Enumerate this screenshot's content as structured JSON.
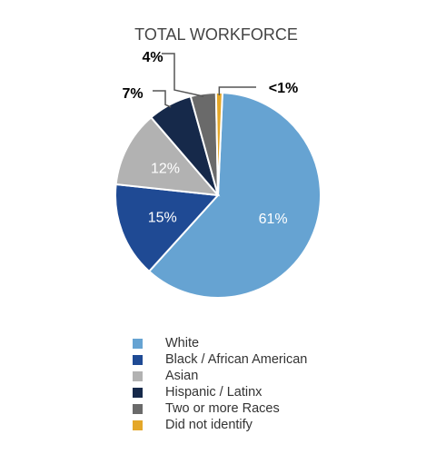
{
  "chart_data": {
    "type": "pie",
    "title": "TOTAL WORKFORCE",
    "slices": [
      {
        "name": "White",
        "value": 61,
        "label": "61%",
        "color": "#66a3d2"
      },
      {
        "name": "Black / African American",
        "value": 15,
        "label": "15%",
        "color": "#1f4a94"
      },
      {
        "name": "Asian",
        "value": 12,
        "label": "12%",
        "color": "#b2b2b2"
      },
      {
        "name": "Hispanic / Latinx",
        "value": 7,
        "label": "7%",
        "color": "#16294a"
      },
      {
        "name": "Two or more Races",
        "value": 4,
        "label": "4%",
        "color": "#6a6a6a"
      },
      {
        "name": "Did not identify",
        "value": 1,
        "label": "<1%",
        "color": "#e4a729"
      }
    ],
    "legend_position": "bottom"
  }
}
